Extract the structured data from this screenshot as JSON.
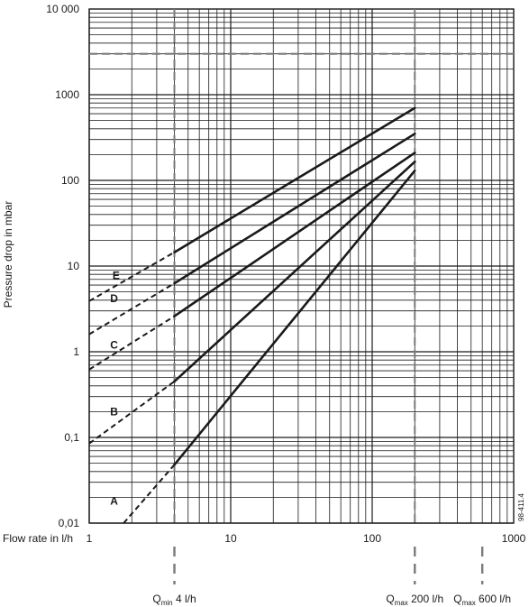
{
  "chart_data": {
    "type": "line",
    "x_scale": "log",
    "y_scale": "log",
    "xlim": [
      1,
      1000
    ],
    "ylim": [
      0.01,
      10000
    ],
    "grid": true,
    "xlabel": "Flow rate in l/h",
    "ylabel": "Pressure drop in mbar",
    "x_ticks": [
      {
        "value": 1,
        "label": "1"
      },
      {
        "value": 10,
        "label": "10"
      },
      {
        "value": 100,
        "label": "100"
      },
      {
        "value": 1000,
        "label": "1000"
      }
    ],
    "y_ticks": [
      {
        "value": 0.01,
        "label": "0,01"
      },
      {
        "value": 0.1,
        "label": "0,1"
      },
      {
        "value": 1,
        "label": "1"
      },
      {
        "value": 10,
        "label": "10"
      },
      {
        "value": 100,
        "label": "100"
      },
      {
        "value": 1000,
        "label": "1000"
      },
      {
        "value": 10000,
        "label": "10 000"
      }
    ],
    "reference_lines": {
      "horizontal": [
        {
          "y": 3000
        }
      ],
      "vertical": [
        {
          "x": 4,
          "main": "Q",
          "sub": "min",
          "rest": " 4 l/h"
        },
        {
          "x": 200,
          "main": "Q",
          "sub": "max",
          "rest": " 200 l/h"
        },
        {
          "x": 600,
          "main": "Q",
          "sub": "max",
          "rest": " 600 l/h"
        }
      ]
    },
    "series": [
      {
        "name": "A",
        "dashed": [
          [
            1.75,
            0.01
          ],
          [
            4,
            0.048
          ]
        ],
        "solid": [
          [
            4,
            0.048
          ],
          [
            200,
            130
          ]
        ],
        "label_at": [
          1.5,
          0.018
        ]
      },
      {
        "name": "B",
        "dashed": [
          [
            1,
            0.085
          ],
          [
            4,
            0.45
          ]
        ],
        "solid": [
          [
            4,
            0.45
          ],
          [
            200,
            165
          ]
        ],
        "label_at": [
          1.5,
          0.2
        ]
      },
      {
        "name": "C",
        "dashed": [
          [
            1,
            0.62
          ],
          [
            4,
            2.6
          ]
        ],
        "solid": [
          [
            4,
            2.6
          ],
          [
            200,
            210
          ]
        ],
        "label_at": [
          1.5,
          1.2
        ]
      },
      {
        "name": "D",
        "dashed": [
          [
            1,
            1.6
          ],
          [
            4,
            6.3
          ]
        ],
        "solid": [
          [
            4,
            6.3
          ],
          [
            200,
            350
          ]
        ],
        "label_at": [
          1.5,
          4.2
        ]
      },
      {
        "name": "E",
        "dashed": [
          [
            1,
            3.9
          ],
          [
            4,
            14.5
          ]
        ],
        "solid": [
          [
            4,
            14.5
          ],
          [
            200,
            700
          ]
        ],
        "label_at": [
          1.55,
          7.8
        ]
      }
    ],
    "corner_code": "98-411.4"
  }
}
